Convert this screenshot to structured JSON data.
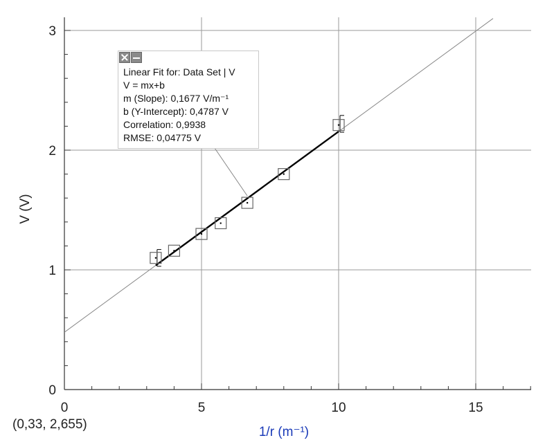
{
  "chart_data": {
    "type": "scatter",
    "title": "",
    "xlabel": "1/r (m⁻¹)",
    "ylabel": "V (V)",
    "xlim": [
      0,
      17
    ],
    "ylim": [
      0,
      3.1
    ],
    "x_ticks": [
      "0",
      "5",
      "10",
      "15"
    ],
    "y_ticks": [
      "0",
      "1",
      "2",
      "3"
    ],
    "grid": true,
    "series": [
      {
        "points": [
          {
            "x": 3.33,
            "y": 1.1
          },
          {
            "x": 4.0,
            "y": 1.16
          },
          {
            "x": 5.0,
            "y": 1.3
          },
          {
            "x": 5.7,
            "y": 1.39
          },
          {
            "x": 6.67,
            "y": 1.56
          },
          {
            "x": 8.0,
            "y": 1.8
          },
          {
            "x": 10.0,
            "y": 2.21
          }
        ],
        "error_bars": [
          {
            "x": 3.33,
            "y_low": 1.03,
            "y_high": 1.17
          },
          {
            "x": 10.0,
            "y_low": 2.15,
            "y_high": 2.29
          }
        ]
      }
    ],
    "fit": {
      "slope": 0.1677,
      "intercept": 0.4787,
      "segment_x": [
        3.33,
        10.0
      ],
      "panel_lines": [
        "Linear Fit for: Data Set | V",
        "V = mx+b",
        "m (Slope): 0,1677 V/m⁻¹",
        "b (Y-Intercept): 0,4787 V",
        "Correlation: 0,9938",
        "RMSE: 0,04775 V"
      ]
    },
    "coordinate_readout": "(0,33, 2,655)",
    "colors": {
      "grid": "#9a9a9a",
      "axis": "#333333",
      "fit_line": "#888888",
      "segment": "#000000",
      "marker": "#666666",
      "xlabel": "#1a3ab8",
      "ylabel": "#222222"
    }
  }
}
